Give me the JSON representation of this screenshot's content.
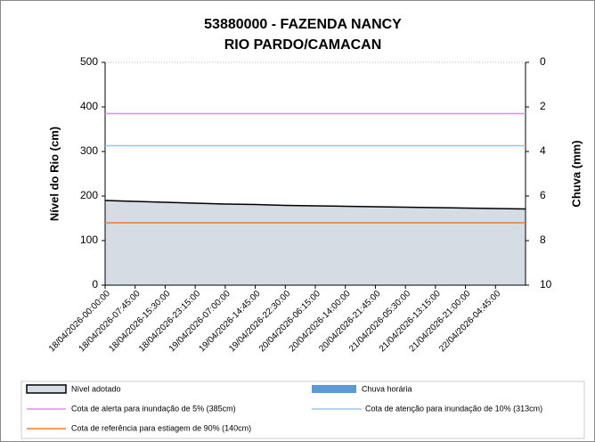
{
  "chart_data": {
    "type": "area",
    "title": [
      "53880000 - FAZENDA NANCY",
      "RIO PARDO/CAMACAN"
    ],
    "y_label": "Nível do Rio (cm)",
    "y2_label": "Chuva (mm)",
    "categories": [
      "18/04/2026-00:00:00",
      "18/04/2026-07:45:00",
      "18/04/2026-15:30:00",
      "18/04/2026-23:15:00",
      "19/04/2026-07:00:00",
      "19/04/2026-14:45:00",
      "19/04/2026-22:30:00",
      "20/04/2026-06:15:00",
      "20/04/2026-14:00:00",
      "20/04/2026-21:45:00",
      "21/04/2026-05:30:00",
      "21/04/2026-13:15:00",
      "21/04/2026-21:00:00",
      "22/04/2026-04:45:00",
      null
    ],
    "series": [
      {
        "name": "Nível adotado",
        "color": "#d6dce4",
        "values": [
          190,
          188,
          186,
          184,
          182,
          181,
          179,
          178,
          177,
          176,
          175,
          174,
          173,
          172,
          171
        ]
      },
      {
        "name": "Chuva horária",
        "color": "#5b9bd5",
        "axis": "y2",
        "values": [
          0,
          0,
          0,
          0,
          0,
          0,
          0,
          0,
          0,
          0,
          0,
          0,
          0,
          0,
          0
        ]
      }
    ],
    "reference_lines": [
      {
        "name": "Cota de alerta para inundação de 5% (385cm)",
        "color": "#e08ee0",
        "value": 385
      },
      {
        "name": "Cota de atenção para inundação de 10% (313cm)",
        "color": "#9dc3e6",
        "value": 313
      },
      {
        "name": "Cota de referência para estiagem de 90% (140cm)",
        "color": "#ed7d31",
        "value": 140
      }
    ],
    "ylim": [
      0,
      500
    ],
    "yticks": [
      0,
      100,
      200,
      300,
      400,
      500
    ],
    "y2lim": [
      0,
      10
    ],
    "y2ticks": [
      0,
      2,
      4,
      6,
      8,
      10
    ],
    "y2_inverted": true,
    "grid": false
  }
}
